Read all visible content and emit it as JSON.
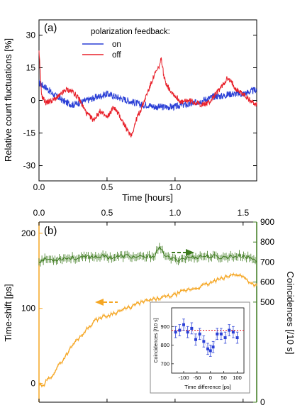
{
  "chart_data": [
    {
      "type": "line",
      "panel_label": "(a)",
      "title": "",
      "xlabel": "Time [hours]",
      "ylabel": "Relative count fluctuations [%]",
      "xlim": [
        0,
        1.6
      ],
      "ylim": [
        -37,
        37
      ],
      "x_ticks": [
        0,
        0.5,
        1.0
      ],
      "x_tick_labels": [
        "0.0",
        "0.5",
        "1.0"
      ],
      "y_ticks": [
        -30,
        -15,
        0,
        15,
        30
      ],
      "y_tick_labels": [
        "-30",
        "-15",
        "0",
        "15",
        "30"
      ],
      "grid": false,
      "legend": {
        "title": "polarization feedback:",
        "placement": "top-center"
      },
      "series": [
        {
          "name": "on",
          "color": "#2a3fd6",
          "x": [
            0,
            0.05,
            0.1,
            0.15,
            0.2,
            0.25,
            0.3,
            0.35,
            0.4,
            0.45,
            0.5,
            0.55,
            0.6,
            0.65,
            0.7,
            0.75,
            0.8,
            0.85,
            0.9,
            0.95,
            1.0,
            1.05,
            1.1,
            1.15,
            1.2,
            1.25,
            1.3,
            1.35,
            1.4,
            1.45,
            1.5,
            1.55,
            1.6
          ],
          "y": [
            8,
            6,
            3,
            1,
            -1,
            -2,
            -1,
            0,
            1,
            2,
            3,
            2,
            1,
            0,
            -1,
            -2,
            -2,
            -3,
            -3,
            -3,
            -3,
            -2,
            -2,
            -1,
            0,
            1,
            2,
            2,
            3,
            3,
            3,
            4,
            5
          ]
        },
        {
          "name": "off",
          "color": "#e8202a",
          "x": [
            0,
            0.01,
            0.02,
            0.05,
            0.1,
            0.15,
            0.2,
            0.25,
            0.3,
            0.35,
            0.4,
            0.45,
            0.5,
            0.55,
            0.6,
            0.65,
            0.68,
            0.72,
            0.75,
            0.8,
            0.85,
            0.88,
            0.9,
            0.92,
            0.95,
            1.0,
            1.05,
            1.1,
            1.15,
            1.2,
            1.25,
            1.3,
            1.35,
            1.38,
            1.42,
            1.45,
            1.5,
            1.55,
            1.6
          ],
          "y": [
            22,
            12,
            2,
            -1,
            0,
            2,
            5,
            4,
            0,
            -6,
            -9,
            -5,
            -8,
            -3,
            -8,
            -14,
            -16,
            -8,
            -4,
            4,
            12,
            15,
            19,
            10,
            6,
            2,
            -1,
            0,
            -1,
            -2,
            -1,
            3,
            7,
            10,
            8,
            5,
            3,
            0,
            -2
          ]
        }
      ]
    },
    {
      "type": "line",
      "panel_label": "(b)",
      "title": "",
      "xlabel": "",
      "ylabel": "Time-shift [ps]",
      "y2label": "Coincidences [/10 s]",
      "xlim": [
        0,
        1.6
      ],
      "ylim": [
        -25,
        215
      ],
      "y2lim": [
        0,
        900
      ],
      "x_ticks": [
        0,
        0.5,
        1.0,
        1.5
      ],
      "x_tick_labels": [
        "0.0",
        "0.5",
        "1.0",
        "1.5"
      ],
      "y_ticks": [
        0,
        100,
        200
      ],
      "y_tick_labels": [
        "0",
        "100",
        "200"
      ],
      "y2_ticks": [
        0,
        500,
        600,
        700,
        800,
        900
      ],
      "y2_tick_labels": [
        "0",
        "500",
        "600",
        "700",
        "800",
        "900"
      ],
      "grid": false,
      "series": [
        {
          "name": "",
          "axis": "left",
          "color": "#f5a623",
          "x": [
            0,
            0.03,
            0.05,
            0.1,
            0.15,
            0.2,
            0.25,
            0.3,
            0.35,
            0.4,
            0.45,
            0.5,
            0.55,
            0.6,
            0.65,
            0.7,
            0.75,
            0.8,
            0.85,
            0.9,
            0.95,
            1.0,
            1.05,
            1.1,
            1.15,
            1.2,
            1.25,
            1.3,
            1.35,
            1.4,
            1.45,
            1.5,
            1.55,
            1.6
          ],
          "y": [
            -2,
            -5,
            2,
            12,
            25,
            38,
            52,
            62,
            72,
            82,
            88,
            90,
            94,
            97,
            100,
            104,
            108,
            110,
            112,
            114,
            116,
            118,
            122,
            125,
            127,
            130,
            133,
            137,
            140,
            143,
            146,
            142,
            135,
            130
          ]
        },
        {
          "name": "",
          "axis": "right",
          "color": "#3d7a1e",
          "x": [
            0,
            0.05,
            0.1,
            0.15,
            0.2,
            0.25,
            0.3,
            0.35,
            0.4,
            0.45,
            0.5,
            0.55,
            0.6,
            0.65,
            0.7,
            0.75,
            0.8,
            0.85,
            0.88,
            0.9,
            0.92,
            0.95,
            1.0,
            1.05,
            1.1,
            1.15,
            1.2,
            1.25,
            1.3,
            1.35,
            1.4,
            1.45,
            1.5,
            1.55,
            1.6
          ],
          "y": [
            705,
            715,
            712,
            718,
            720,
            722,
            718,
            725,
            728,
            730,
            726,
            724,
            728,
            730,
            726,
            722,
            725,
            735,
            770,
            755,
            745,
            720,
            712,
            718,
            722,
            726,
            730,
            728,
            726,
            724,
            728,
            730,
            732,
            720,
            710
          ],
          "error": 18
        }
      ]
    },
    {
      "type": "scatter",
      "panel_label": "inset",
      "title": "",
      "xlabel": "Time difference [ps]",
      "ylabel": "Coincidences [/10 s]",
      "xlim": [
        -145,
        125
      ],
      "ylim": [
        650,
        1000
      ],
      "x_ticks": [
        -100,
        -50,
        0,
        50,
        100
      ],
      "x_tick_labels": [
        "-100",
        "-50",
        "0",
        "50",
        "100"
      ],
      "y_ticks": [
        700,
        800,
        900
      ],
      "y_tick_labels": [
        "700",
        "800",
        "900"
      ],
      "reference_line": 880,
      "reference_color": "#e8202a",
      "series": [
        {
          "name": "",
          "color": "#2a3fd6",
          "x": [
            -130,
            -115,
            -100,
            -85,
            -70,
            -55,
            -40,
            -25,
            -10,
            0,
            10,
            25,
            40,
            55,
            70,
            85,
            100
          ],
          "y": [
            870,
            880,
            910,
            870,
            890,
            830,
            860,
            820,
            780,
            770,
            790,
            860,
            860,
            840,
            880,
            870,
            840
          ],
          "err": [
            30,
            30,
            30,
            30,
            30,
            30,
            30,
            30,
            30,
            30,
            30,
            30,
            30,
            30,
            30,
            30,
            30
          ]
        }
      ]
    }
  ]
}
